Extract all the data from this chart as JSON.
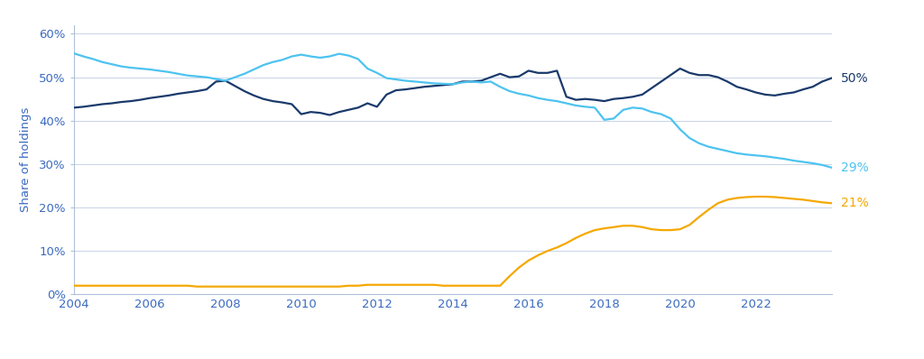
{
  "ylabel": "Share of holdings",
  "ylim": [
    0,
    0.62
  ],
  "xlim": [
    2004,
    2024.0
  ],
  "yticks": [
    0.0,
    0.1,
    0.2,
    0.3,
    0.4,
    0.5,
    0.6
  ],
  "ytick_labels": [
    "0%",
    "10%",
    "20%",
    "30%",
    "40%",
    "50%",
    "60%"
  ],
  "xticks": [
    2004,
    2006,
    2008,
    2010,
    2012,
    2014,
    2016,
    2018,
    2020,
    2022
  ],
  "background_color": "#ffffff",
  "grid_color": "#c8d4e8",
  "spine_color": "#b0c0d8",
  "tick_color": "#5a7ab5",
  "label_color": "#3a6abf",
  "colors": {
    "foreign": "#1a3a6b",
    "domestic": "#4dc3f0",
    "central": "#f5a800"
  },
  "end_labels": {
    "foreign": "50%",
    "domestic": "29%",
    "central": "21%"
  },
  "foreign": [
    [
      2004.0,
      0.43
    ],
    [
      2004.25,
      0.432
    ],
    [
      2004.5,
      0.435
    ],
    [
      2004.75,
      0.438
    ],
    [
      2005.0,
      0.44
    ],
    [
      2005.25,
      0.443
    ],
    [
      2005.5,
      0.445
    ],
    [
      2005.75,
      0.448
    ],
    [
      2006.0,
      0.452
    ],
    [
      2006.25,
      0.455
    ],
    [
      2006.5,
      0.458
    ],
    [
      2006.75,
      0.462
    ],
    [
      2007.0,
      0.465
    ],
    [
      2007.25,
      0.468
    ],
    [
      2007.5,
      0.472
    ],
    [
      2007.75,
      0.49
    ],
    [
      2008.0,
      0.492
    ],
    [
      2008.25,
      0.48
    ],
    [
      2008.5,
      0.468
    ],
    [
      2008.75,
      0.458
    ],
    [
      2009.0,
      0.45
    ],
    [
      2009.25,
      0.445
    ],
    [
      2009.5,
      0.442
    ],
    [
      2009.75,
      0.438
    ],
    [
      2010.0,
      0.415
    ],
    [
      2010.25,
      0.42
    ],
    [
      2010.5,
      0.418
    ],
    [
      2010.75,
      0.413
    ],
    [
      2011.0,
      0.42
    ],
    [
      2011.25,
      0.425
    ],
    [
      2011.5,
      0.43
    ],
    [
      2011.75,
      0.44
    ],
    [
      2012.0,
      0.432
    ],
    [
      2012.25,
      0.46
    ],
    [
      2012.5,
      0.47
    ],
    [
      2012.75,
      0.472
    ],
    [
      2013.0,
      0.475
    ],
    [
      2013.25,
      0.478
    ],
    [
      2013.5,
      0.48
    ],
    [
      2013.75,
      0.482
    ],
    [
      2014.0,
      0.484
    ],
    [
      2014.25,
      0.49
    ],
    [
      2014.5,
      0.49
    ],
    [
      2014.75,
      0.492
    ],
    [
      2015.0,
      0.5
    ],
    [
      2015.25,
      0.508
    ],
    [
      2015.5,
      0.5
    ],
    [
      2015.75,
      0.502
    ],
    [
      2016.0,
      0.515
    ],
    [
      2016.25,
      0.51
    ],
    [
      2016.5,
      0.51
    ],
    [
      2016.75,
      0.515
    ],
    [
      2017.0,
      0.455
    ],
    [
      2017.25,
      0.448
    ],
    [
      2017.5,
      0.45
    ],
    [
      2017.75,
      0.448
    ],
    [
      2018.0,
      0.445
    ],
    [
      2018.25,
      0.45
    ],
    [
      2018.5,
      0.452
    ],
    [
      2018.75,
      0.455
    ],
    [
      2019.0,
      0.46
    ],
    [
      2019.25,
      0.475
    ],
    [
      2019.5,
      0.49
    ],
    [
      2019.75,
      0.505
    ],
    [
      2020.0,
      0.52
    ],
    [
      2020.25,
      0.51
    ],
    [
      2020.5,
      0.505
    ],
    [
      2020.75,
      0.505
    ],
    [
      2021.0,
      0.5
    ],
    [
      2021.25,
      0.49
    ],
    [
      2021.5,
      0.478
    ],
    [
      2021.75,
      0.472
    ],
    [
      2022.0,
      0.465
    ],
    [
      2022.25,
      0.46
    ],
    [
      2022.5,
      0.458
    ],
    [
      2022.75,
      0.462
    ],
    [
      2023.0,
      0.465
    ],
    [
      2023.25,
      0.472
    ],
    [
      2023.5,
      0.478
    ],
    [
      2023.75,
      0.49
    ],
    [
      2024.0,
      0.498
    ]
  ],
  "domestic": [
    [
      2004.0,
      0.555
    ],
    [
      2004.25,
      0.548
    ],
    [
      2004.5,
      0.542
    ],
    [
      2004.75,
      0.535
    ],
    [
      2005.0,
      0.53
    ],
    [
      2005.25,
      0.525
    ],
    [
      2005.5,
      0.522
    ],
    [
      2005.75,
      0.52
    ],
    [
      2006.0,
      0.518
    ],
    [
      2006.25,
      0.515
    ],
    [
      2006.5,
      0.512
    ],
    [
      2006.75,
      0.508
    ],
    [
      2007.0,
      0.504
    ],
    [
      2007.25,
      0.502
    ],
    [
      2007.5,
      0.5
    ],
    [
      2007.75,
      0.496
    ],
    [
      2008.0,
      0.492
    ],
    [
      2008.25,
      0.5
    ],
    [
      2008.5,
      0.508
    ],
    [
      2008.75,
      0.518
    ],
    [
      2009.0,
      0.528
    ],
    [
      2009.25,
      0.535
    ],
    [
      2009.5,
      0.54
    ],
    [
      2009.75,
      0.548
    ],
    [
      2010.0,
      0.552
    ],
    [
      2010.25,
      0.548
    ],
    [
      2010.5,
      0.545
    ],
    [
      2010.75,
      0.548
    ],
    [
      2011.0,
      0.554
    ],
    [
      2011.25,
      0.55
    ],
    [
      2011.5,
      0.542
    ],
    [
      2011.75,
      0.52
    ],
    [
      2012.0,
      0.51
    ],
    [
      2012.25,
      0.498
    ],
    [
      2012.5,
      0.495
    ],
    [
      2012.75,
      0.492
    ],
    [
      2013.0,
      0.49
    ],
    [
      2013.25,
      0.488
    ],
    [
      2013.5,
      0.486
    ],
    [
      2013.75,
      0.485
    ],
    [
      2014.0,
      0.484
    ],
    [
      2014.25,
      0.488
    ],
    [
      2014.5,
      0.49
    ],
    [
      2014.75,
      0.488
    ],
    [
      2015.0,
      0.49
    ],
    [
      2015.25,
      0.478
    ],
    [
      2015.5,
      0.468
    ],
    [
      2015.75,
      0.462
    ],
    [
      2016.0,
      0.458
    ],
    [
      2016.25,
      0.452
    ],
    [
      2016.5,
      0.448
    ],
    [
      2016.75,
      0.445
    ],
    [
      2017.0,
      0.44
    ],
    [
      2017.25,
      0.435
    ],
    [
      2017.5,
      0.432
    ],
    [
      2017.75,
      0.43
    ],
    [
      2018.0,
      0.402
    ],
    [
      2018.25,
      0.405
    ],
    [
      2018.5,
      0.425
    ],
    [
      2018.75,
      0.43
    ],
    [
      2019.0,
      0.428
    ],
    [
      2019.25,
      0.42
    ],
    [
      2019.5,
      0.415
    ],
    [
      2019.75,
      0.405
    ],
    [
      2020.0,
      0.38
    ],
    [
      2020.25,
      0.36
    ],
    [
      2020.5,
      0.348
    ],
    [
      2020.75,
      0.34
    ],
    [
      2021.0,
      0.335
    ],
    [
      2021.25,
      0.33
    ],
    [
      2021.5,
      0.325
    ],
    [
      2021.75,
      0.322
    ],
    [
      2022.0,
      0.32
    ],
    [
      2022.25,
      0.318
    ],
    [
      2022.5,
      0.315
    ],
    [
      2022.75,
      0.312
    ],
    [
      2023.0,
      0.308
    ],
    [
      2023.25,
      0.305
    ],
    [
      2023.5,
      0.302
    ],
    [
      2023.75,
      0.298
    ],
    [
      2024.0,
      0.292
    ]
  ],
  "central": [
    [
      2004.0,
      0.02
    ],
    [
      2004.25,
      0.02
    ],
    [
      2004.5,
      0.02
    ],
    [
      2004.75,
      0.02
    ],
    [
      2005.0,
      0.02
    ],
    [
      2005.25,
      0.02
    ],
    [
      2005.5,
      0.02
    ],
    [
      2005.75,
      0.02
    ],
    [
      2006.0,
      0.02
    ],
    [
      2006.25,
      0.02
    ],
    [
      2006.5,
      0.02
    ],
    [
      2006.75,
      0.02
    ],
    [
      2007.0,
      0.02
    ],
    [
      2007.25,
      0.018
    ],
    [
      2007.5,
      0.018
    ],
    [
      2007.75,
      0.018
    ],
    [
      2008.0,
      0.018
    ],
    [
      2008.25,
      0.018
    ],
    [
      2008.5,
      0.018
    ],
    [
      2008.75,
      0.018
    ],
    [
      2009.0,
      0.018
    ],
    [
      2009.25,
      0.018
    ],
    [
      2009.5,
      0.018
    ],
    [
      2009.75,
      0.018
    ],
    [
      2010.0,
      0.018
    ],
    [
      2010.25,
      0.018
    ],
    [
      2010.5,
      0.018
    ],
    [
      2010.75,
      0.018
    ],
    [
      2011.0,
      0.018
    ],
    [
      2011.25,
      0.02
    ],
    [
      2011.5,
      0.02
    ],
    [
      2011.75,
      0.022
    ],
    [
      2012.0,
      0.022
    ],
    [
      2012.25,
      0.022
    ],
    [
      2012.5,
      0.022
    ],
    [
      2012.75,
      0.022
    ],
    [
      2013.0,
      0.022
    ],
    [
      2013.25,
      0.022
    ],
    [
      2013.5,
      0.022
    ],
    [
      2013.75,
      0.02
    ],
    [
      2014.0,
      0.02
    ],
    [
      2014.25,
      0.02
    ],
    [
      2014.5,
      0.02
    ],
    [
      2014.75,
      0.02
    ],
    [
      2015.0,
      0.02
    ],
    [
      2015.25,
      0.02
    ],
    [
      2015.5,
      0.042
    ],
    [
      2015.75,
      0.062
    ],
    [
      2016.0,
      0.078
    ],
    [
      2016.25,
      0.09
    ],
    [
      2016.5,
      0.1
    ],
    [
      2016.75,
      0.108
    ],
    [
      2017.0,
      0.118
    ],
    [
      2017.25,
      0.13
    ],
    [
      2017.5,
      0.14
    ],
    [
      2017.75,
      0.148
    ],
    [
      2018.0,
      0.152
    ],
    [
      2018.25,
      0.155
    ],
    [
      2018.5,
      0.158
    ],
    [
      2018.75,
      0.158
    ],
    [
      2019.0,
      0.155
    ],
    [
      2019.25,
      0.15
    ],
    [
      2019.5,
      0.148
    ],
    [
      2019.75,
      0.148
    ],
    [
      2020.0,
      0.15
    ],
    [
      2020.25,
      0.16
    ],
    [
      2020.5,
      0.178
    ],
    [
      2020.75,
      0.195
    ],
    [
      2021.0,
      0.21
    ],
    [
      2021.25,
      0.218
    ],
    [
      2021.5,
      0.222
    ],
    [
      2021.75,
      0.224
    ],
    [
      2022.0,
      0.225
    ],
    [
      2022.25,
      0.225
    ],
    [
      2022.5,
      0.224
    ],
    [
      2022.75,
      0.222
    ],
    [
      2023.0,
      0.22
    ],
    [
      2023.25,
      0.218
    ],
    [
      2023.5,
      0.215
    ],
    [
      2023.75,
      0.212
    ],
    [
      2024.0,
      0.21
    ]
  ]
}
